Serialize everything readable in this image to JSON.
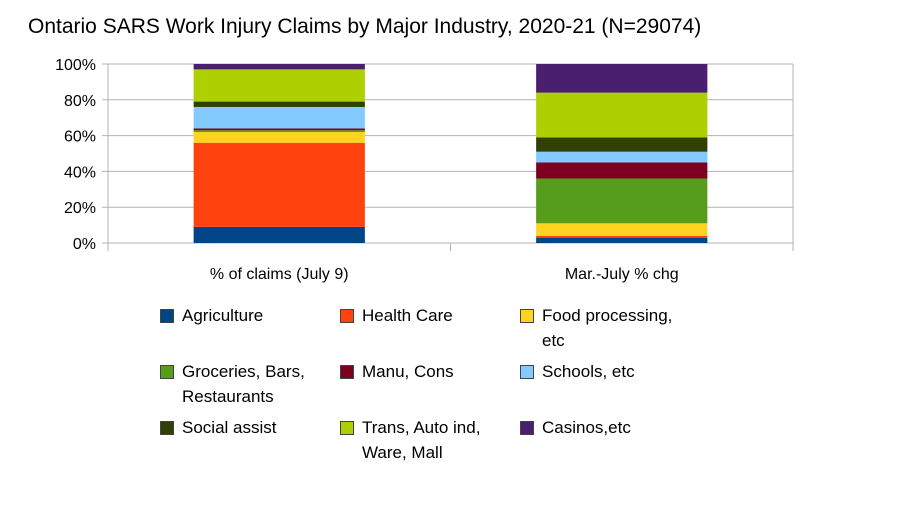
{
  "chart_data": {
    "type": "bar",
    "stacked": true,
    "title": "Ontario SARS Work Injury Claims by Major Industry, 2020-21 (N=29074)",
    "categories": [
      "% of claims (July 9)",
      "Mar.-July % chg"
    ],
    "ylim": [
      0,
      100
    ],
    "yticks": [
      "0%",
      "20%",
      "40%",
      "60%",
      "80%",
      "100%"
    ],
    "grid": true,
    "legend_position": "bottom",
    "series": [
      {
        "name": "Agriculture",
        "color": "#004586",
        "values": [
          9,
          3
        ]
      },
      {
        "name": "Health Care",
        "color": "#ff420e",
        "values": [
          47,
          1
        ]
      },
      {
        "name": "Food processing, etc",
        "color": "#ffd320",
        "values": [
          6,
          7
        ]
      },
      {
        "name": "Groceries, Bars, Restaurants",
        "color": "#579d1c",
        "values": [
          1,
          25
        ]
      },
      {
        "name": "Manu, Cons",
        "color": "#7e0021",
        "values": [
          1,
          9
        ]
      },
      {
        "name": "Schools, etc",
        "color": "#83caff",
        "values": [
          12,
          6
        ]
      },
      {
        "name": "Social assist",
        "color": "#314004",
        "values": [
          3,
          8
        ]
      },
      {
        "name": "Trans, Auto ind, Ware, Mall",
        "color": "#aecf00",
        "values": [
          18,
          25
        ]
      },
      {
        "name": "Casinos,etc",
        "color": "#4b1f6f",
        "values": [
          3,
          16
        ]
      }
    ]
  }
}
